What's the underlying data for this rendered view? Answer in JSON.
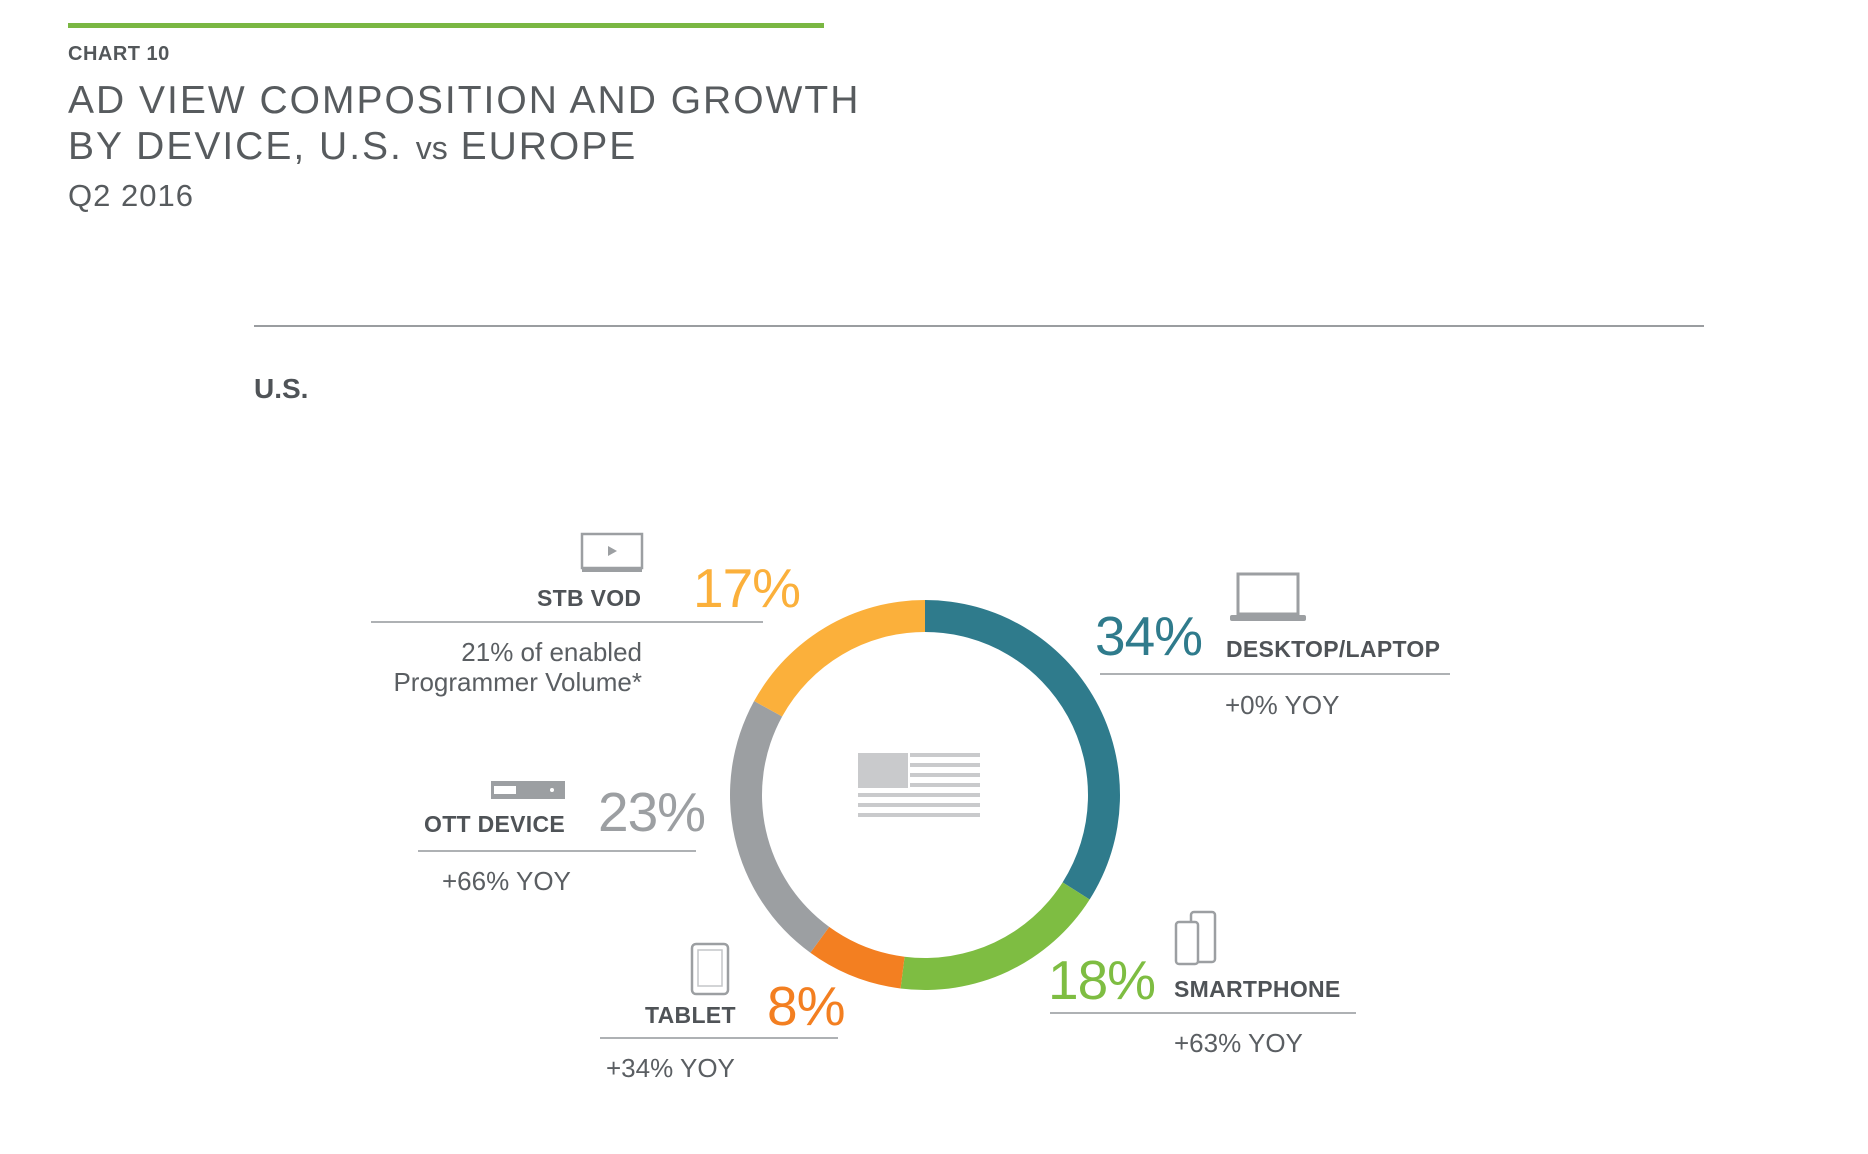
{
  "header": {
    "chart_number": "CHART 10",
    "title_line1": "AD VIEW COMPOSITION AND GROWTH",
    "title_line2_pre": "BY DEVICE, U.S.",
    "title_line2_vs": "vs",
    "title_line2_post": "EUROPE",
    "subtitle": "Q2 2016"
  },
  "region": {
    "label": "U.S.",
    "center_icon": "us-flag-icon"
  },
  "chart_data": {
    "type": "pie",
    "variant": "donut",
    "categories": [
      "DESKTOP/LAPTOP",
      "SMARTPHONE",
      "TABLET",
      "OTT DEVICE",
      "STB VOD"
    ],
    "values": [
      34,
      18,
      8,
      23,
      17
    ],
    "unit": "%",
    "start_angle_deg": 0,
    "direction": "clockwise",
    "slices": [
      {
        "label": "DESKTOP/LAPTOP",
        "value": 34,
        "display": "34%",
        "color": "#2f7b8c",
        "yoy": "+0% YOY",
        "icon": "laptop-icon"
      },
      {
        "label": "SMARTPHONE",
        "value": 18,
        "display": "18%",
        "color": "#7ebd42",
        "yoy": "+63% YOY",
        "icon": "smartphone-icon"
      },
      {
        "label": "TABLET",
        "value": 8,
        "display": "8%",
        "color": "#f37f21",
        "yoy": "+34% YOY",
        "icon": "tablet-icon"
      },
      {
        "label": "OTT DEVICE",
        "value": 23,
        "display": "23%",
        "color": "#9c9fa2",
        "yoy": "+66% YOY",
        "icon": "ott-box-icon"
      },
      {
        "label": "STB VOD",
        "value": 17,
        "display": "17%",
        "color": "#fbb03b",
        "note_line1": "21% of enabled",
        "note_line2": "Programmer Volume*",
        "icon": "tv-play-icon"
      }
    ]
  }
}
